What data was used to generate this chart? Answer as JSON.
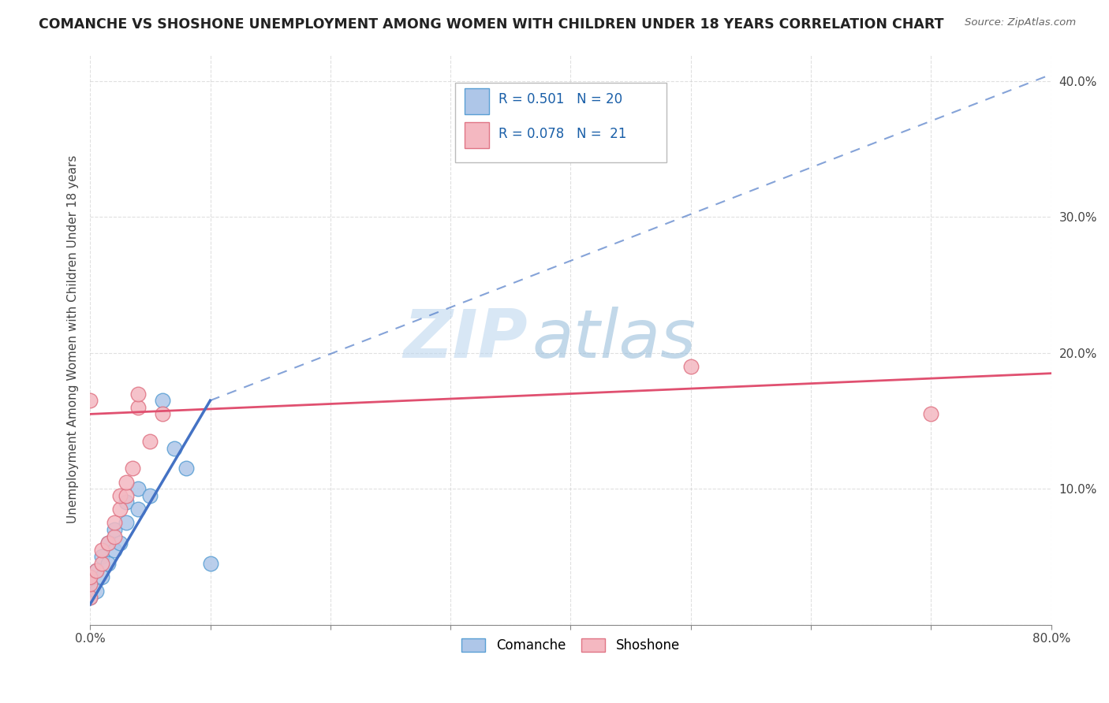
{
  "title": "COMANCHE VS SHOSHONE UNEMPLOYMENT AMONG WOMEN WITH CHILDREN UNDER 18 YEARS CORRELATION CHART",
  "source": "Source: ZipAtlas.com",
  "xlabel": "",
  "ylabel": "Unemployment Among Women with Children Under 18 years",
  "xlim": [
    0.0,
    0.8
  ],
  "ylim": [
    0.0,
    0.42
  ],
  "xticks": [
    0.0,
    0.1,
    0.2,
    0.3,
    0.4,
    0.5,
    0.6,
    0.7,
    0.8
  ],
  "yticks": [
    0.0,
    0.1,
    0.2,
    0.3,
    0.4
  ],
  "xtick_labels": [
    "0.0%",
    "",
    "",
    "",
    "",
    "",
    "",
    "",
    "80.0%"
  ],
  "ytick_labels": [
    "",
    "10.0%",
    "20.0%",
    "30.0%",
    "40.0%"
  ],
  "comanche_scatter": [
    [
      0.0,
      0.02
    ],
    [
      0.0,
      0.03
    ],
    [
      0.005,
      0.025
    ],
    [
      0.005,
      0.04
    ],
    [
      0.01,
      0.035
    ],
    [
      0.01,
      0.05
    ],
    [
      0.015,
      0.045
    ],
    [
      0.015,
      0.06
    ],
    [
      0.02,
      0.055
    ],
    [
      0.02,
      0.07
    ],
    [
      0.025,
      0.06
    ],
    [
      0.03,
      0.075
    ],
    [
      0.03,
      0.09
    ],
    [
      0.04,
      0.085
    ],
    [
      0.04,
      0.1
    ],
    [
      0.05,
      0.095
    ],
    [
      0.06,
      0.165
    ],
    [
      0.07,
      0.13
    ],
    [
      0.08,
      0.115
    ],
    [
      0.1,
      0.045
    ]
  ],
  "shoshone_scatter": [
    [
      0.0,
      0.02
    ],
    [
      0.0,
      0.03
    ],
    [
      0.0,
      0.035
    ],
    [
      0.005,
      0.04
    ],
    [
      0.01,
      0.045
    ],
    [
      0.01,
      0.055
    ],
    [
      0.015,
      0.06
    ],
    [
      0.02,
      0.065
    ],
    [
      0.02,
      0.075
    ],
    [
      0.025,
      0.085
    ],
    [
      0.025,
      0.095
    ],
    [
      0.03,
      0.095
    ],
    [
      0.03,
      0.105
    ],
    [
      0.035,
      0.115
    ],
    [
      0.04,
      0.16
    ],
    [
      0.04,
      0.17
    ],
    [
      0.05,
      0.135
    ],
    [
      0.06,
      0.155
    ],
    [
      0.0,
      0.165
    ],
    [
      0.5,
      0.19
    ],
    [
      0.7,
      0.155
    ]
  ],
  "comanche_line_solid": [
    [
      0.0,
      0.015
    ],
    [
      0.1,
      0.165
    ]
  ],
  "shoshone_line_regression": [
    [
      0.0,
      0.155
    ],
    [
      0.8,
      0.185
    ]
  ],
  "comanche_dashed_line": [
    [
      0.1,
      0.165
    ],
    [
      0.8,
      0.405
    ]
  ],
  "scatter_size": 100,
  "comanche_color": "#aec6e8",
  "shoshone_color": "#f4b8c1",
  "comanche_edge": "#5a9fd4",
  "shoshone_edge": "#e07585",
  "line_comanche_color": "#4472c4",
  "line_shoshone_color": "#e05070",
  "watermark_zip": "ZIP",
  "watermark_atlas": "atlas",
  "background_color": "#ffffff",
  "grid_color": "#cccccc",
  "legend_R1": "R = 0.501",
  "legend_N1": "N = 20",
  "legend_R2": "R = 0.078",
  "legend_N2": "N =  21"
}
